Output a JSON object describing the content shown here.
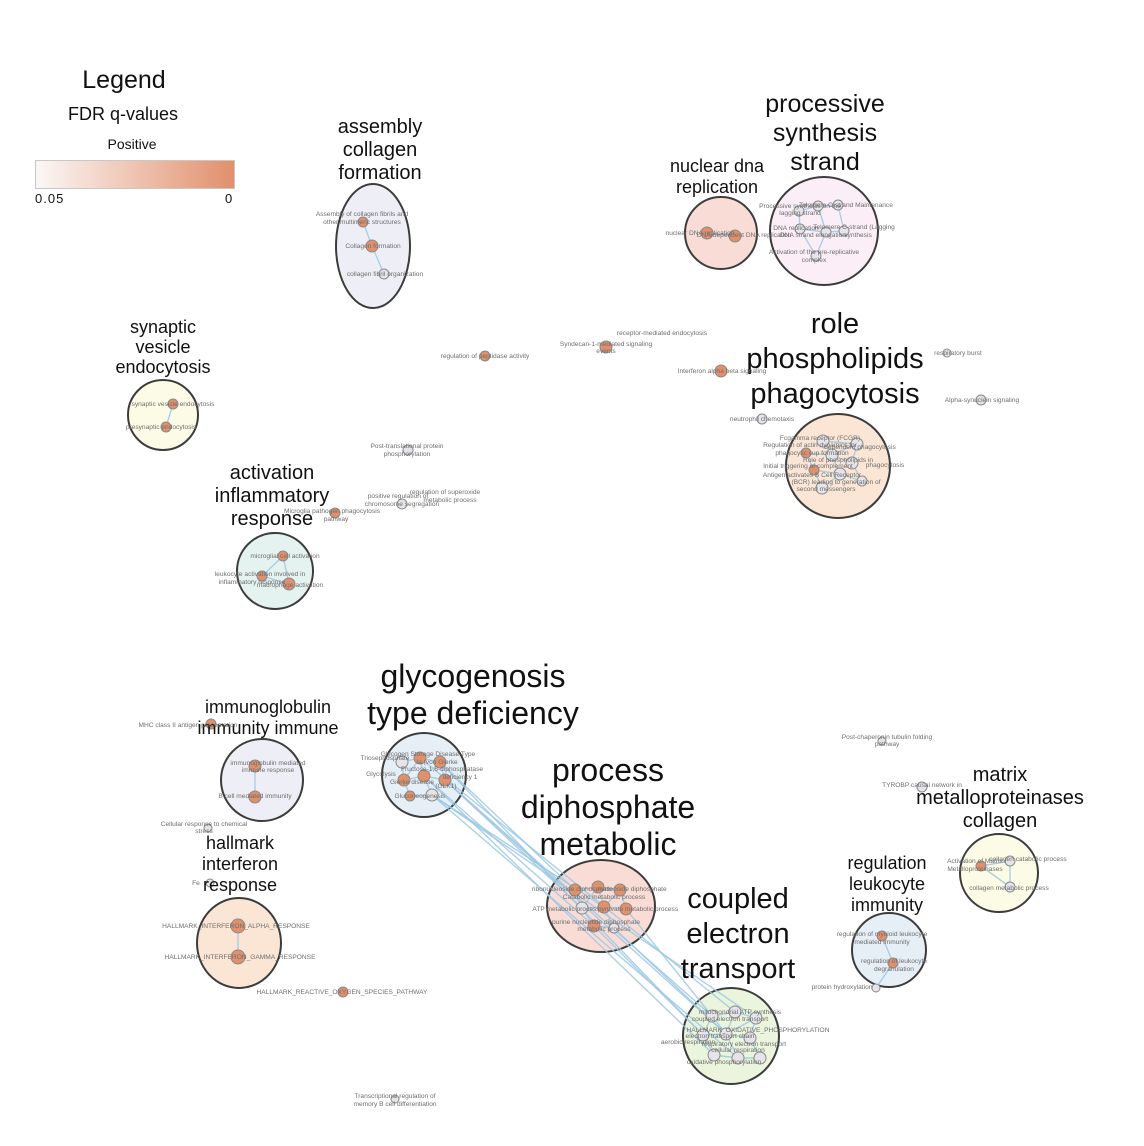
{
  "legend": {
    "title": "Legend",
    "subtitle": "FDR q-values",
    "sign": "Positive",
    "min_label": "0.05",
    "max_label": "0",
    "color_low": "#fbf7f6",
    "color_high": "#e1906c"
  },
  "colors": {
    "node_fill": "#e1906c",
    "node_pale": "#e4e4ea",
    "node_stroke": "#8a8a8a",
    "edge": "#9cc8e4",
    "cluster_stroke": "#3c3c3c"
  },
  "clusters": [
    {
      "id": "assembly-collagen",
      "label": [
        "assembly",
        "collagen",
        "formation"
      ],
      "fill": "#eeeef6"
    },
    {
      "id": "nuclear-dna",
      "label": [
        "nuclear dna",
        "replication"
      ],
      "fill": "#fadcd6"
    },
    {
      "id": "processive-synthesis",
      "label": [
        "processive",
        "synthesis",
        "strand"
      ],
      "fill": "#fbeef6"
    },
    {
      "id": "synaptic-vesicle",
      "label": [
        "synaptic",
        "vesicle",
        "endocytosis"
      ],
      "fill": "#fcfbe6"
    },
    {
      "id": "role-phospholipids",
      "label": [
        "role",
        "phospholipids",
        "phagocytosis"
      ],
      "fill": "#fbe6d6"
    },
    {
      "id": "activation-inflammatory",
      "label": [
        "activation",
        "inflammatory",
        "response"
      ],
      "fill": "#e4f3ef"
    },
    {
      "id": "immunoglobulin",
      "label": [
        "immunoglobulin",
        "immunity immune"
      ],
      "fill": "#eeeef6"
    },
    {
      "id": "glycogenosis",
      "label": [
        "glycogenosis",
        "type deficiency"
      ],
      "fill": "#e6eef6"
    },
    {
      "id": "process-diphosphate",
      "label": [
        "process",
        "diphosphate",
        "metabolic"
      ],
      "fill": "#fadcd6"
    },
    {
      "id": "hallmark-interferon",
      "label": [
        "hallmark",
        "interferon",
        "response"
      ],
      "fill": "#fbe6d6"
    },
    {
      "id": "coupled-electron",
      "label": [
        "coupled",
        "electron",
        "transport"
      ],
      "fill": "#ebf4dc"
    },
    {
      "id": "regulation-leukocyte",
      "label": [
        "regulation",
        "leukocyte",
        "immunity"
      ],
      "fill": "#e6eef6"
    },
    {
      "id": "matrix-metallo",
      "label": [
        "matrix",
        "metalloproteinases",
        "collagen"
      ],
      "fill": "#fcfbe6"
    }
  ],
  "node_labels": {
    "collagen_a": "Assembly of collagen fibrils and",
    "collagen_b": "other multimeric structures",
    "collagen_formation": "Collagen formation",
    "collagen_fibril": "collagen fibril organization",
    "nuclear_dna": "nuclear DNA replication",
    "dna_dep": "DNA-dependent DNA replication",
    "proc_lag_a": "Processive synthesis on the",
    "proc_lag_b": "lagging strand",
    "telomere": "Telomere C-strand Maintenance",
    "dna_rep_a": "DNA replication",
    "c_strand": "Telomere C-strand (Lagging",
    "dna_strand": "DNA strand elongation",
    "synthesis": "synthesis",
    "activation_pre_a": "Activation of the pre-replicative",
    "activation_pre_b": "complex",
    "receptor_endo": "receptor-mediated endocytosis",
    "syndecan_a": "Syndecan-1-mediated signaling",
    "syndecan_b": "events",
    "peptidase": "regulation of peptidase activity",
    "interferon_alpha": "Interferon alpha beta signaling",
    "burst": "respiratory burst",
    "alpha_syn": "Alpha-synuclein signaling",
    "neutrophil": "neutrophil chemotaxis",
    "synaptic_vesicle": "synaptic vesicle endocytosis",
    "presynaptic": "presynaptic endocytosis",
    "fcgr": "Fcgamma receptor (FCGR)",
    "dependent": "dependent phagocytosis",
    "regulation_actin": "Regulation of actin dynamics for",
    "phagocytic_cup": "phagocytic cup formation",
    "role_phospho": "Role of phospholipids in",
    "phagocytosis": "phagocytosis",
    "initial_trigger": "Initial triggering of complement",
    "antigen_a": "Antigen activates B Cell Receptor",
    "antigen_b": "(BCR) leading to generation of",
    "second_messengers": "second messengers",
    "post_trans_a": "Post-translational protein",
    "post_trans_b": "phosphorylation",
    "pos_reg_a": "positive regulation of",
    "pos_reg_b": "chromosome segregation",
    "reg_superoxide_a": "regulation of superoxide",
    "reg_superoxide_b": "metabolic process",
    "microglia_path_a": "Microglia pathogen phagocytosis",
    "microglia_path_b": "pathway",
    "microglial_act": "microglial cell activation",
    "leukocyte_act_a": "leukocyte activation involved in",
    "leukocyte_act_b": "inflammatory response",
    "macrophage_act": "macrophage activation",
    "mhc": "MHC class II antigen presentation",
    "immunoglobulin_a": "immunoglobulin mediated",
    "immunoglobulin_b": "immune response",
    "b_cell": "B cell mediated immunity",
    "cellular_resp_a": "Cellular response to chemical",
    "cellular_resp_b": "stress",
    "fe": "Fe",
    "hallmark_alpha": "HALLMARK_INTERFERON_ALPHA_RESPONSE",
    "hallmark_gamma": "HALLMARK_INTERFERON_GAMMA_RESPONSE",
    "hallmark_ros": "HALLMARK_REACTIVE_OXYGEN_SPECIES_PATHWAY",
    "transcriptional_a": "Transcriptional regulation of",
    "transcriptional_b": "memory B cell differentiation",
    "glycogen_storage": "Glycogen Storage Disease Type",
    "triose": "Triosephosphate",
    "von_gierke": "Ia (von Gierke",
    "glycolysis": "Glycolysis",
    "fructose": "Fructose-1,6-diphosphatase",
    "deficiency": "deficiency 1",
    "gierke": "Gierke disease",
    "glk": "(GLK1)",
    "gluconeogenesis": "Gluconeogenesis",
    "ribonucleoside": "ribonucleoside diphosphate",
    "nucleoside_diph": "nucleoside diphosphate",
    "catabolic": "Catabolic metabolic process",
    "atp_metabolic": "ATP metabolic process",
    "pyruvate": "pyruvate metabolic process",
    "purine_a": "purine nucleotide diphosphate",
    "purine_b": "metabolic process",
    "post_chaperonin_a": "Post-chaperonin tubulin folding",
    "post_chaperonin_b": "pathway",
    "tyrobp": "TYROBP causal network in",
    "activation_matrix_a": "Activation of Matrix",
    "activation_matrix_b": "Metalloproteinases",
    "collagen_catabolic": "collagen catabolic process",
    "collagen_metabolic": "collagen metabolic process",
    "reg_myeloid_a": "regulation of myeloid leukocyte",
    "reg_myeloid_b": "mediated immunity",
    "reg_leukocyte_deg": "regulation of leukocyte",
    "degranulation": "degranulation",
    "protein_hydrox": "protein hydroxylation",
    "mito_atp": "mitochondrial ATP synthesis",
    "coupled_et": "coupled electron transport",
    "hallmark_oxphos": "HALLMARK_OXIDATIVE_PHOSPHORYLATION",
    "respiratory_chain": "respiratory electron transport",
    "aerobic": "aerobic respiration",
    "oxidative_phos": "oxidative phosphorylation",
    "cellular_resp": "cellular respiration",
    "electron_transport": "electron transport chain"
  }
}
